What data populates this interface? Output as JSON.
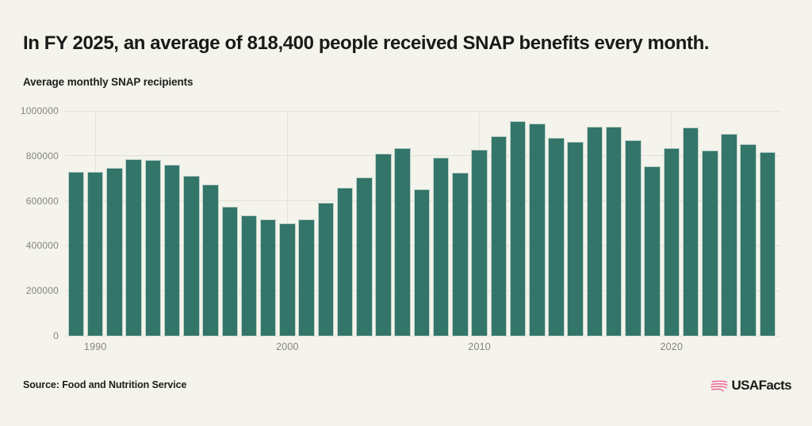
{
  "header": {
    "title": "In FY 2025, an average of 818,400 people received SNAP benefits every month.",
    "subtitle": "Average monthly SNAP recipients"
  },
  "chart_data": {
    "type": "bar",
    "title": "Average monthly SNAP recipients",
    "xlabel": "",
    "ylabel": "Average monthly SNAP recipients",
    "ylim": [
      0,
      1000000
    ],
    "grid": true,
    "legend": false,
    "ytick_values": [
      0,
      200000,
      400000,
      600000,
      800000,
      1000000
    ],
    "ytick_labels": [
      "0",
      "200000",
      "400000",
      "600000",
      "800000",
      "1000000"
    ],
    "xtick_years": [
      1990,
      2000,
      2010,
      2020
    ],
    "xtick_labels": [
      "1990",
      "2000",
      "2010",
      "2020"
    ],
    "bar_color": "#34756a",
    "x": [
      1989,
      1990,
      1991,
      1992,
      1993,
      1994,
      1995,
      1996,
      1997,
      1998,
      1999,
      2000,
      2001,
      2002,
      2003,
      2004,
      2005,
      2006,
      2007,
      2008,
      2009,
      2010,
      2011,
      2012,
      2013,
      2014,
      2015,
      2016,
      2017,
      2018,
      2019,
      2020,
      2021,
      2022,
      2023,
      2024,
      2025
    ],
    "values": [
      728000,
      730000,
      745000,
      784000,
      781000,
      759000,
      712000,
      671000,
      575000,
      537000,
      517000,
      500000,
      518000,
      590000,
      657000,
      706000,
      811000,
      834000,
      651000,
      794000,
      726000,
      828000,
      888000,
      953000,
      944000,
      879000,
      861000,
      930000,
      931000,
      870000,
      753000,
      834000,
      927000,
      825000,
      899000,
      851000,
      818400
    ]
  },
  "footer": {
    "source": "Source: Food and Nutrition Service",
    "logo_text": "USAFacts"
  },
  "colors": {
    "background": "#f4f4ec",
    "bar": "#34756a",
    "gridline": "#e1e1d8",
    "axis_label": "#85847d",
    "text": "#1d1e1b",
    "logo_pink": "#ee5a94"
  }
}
